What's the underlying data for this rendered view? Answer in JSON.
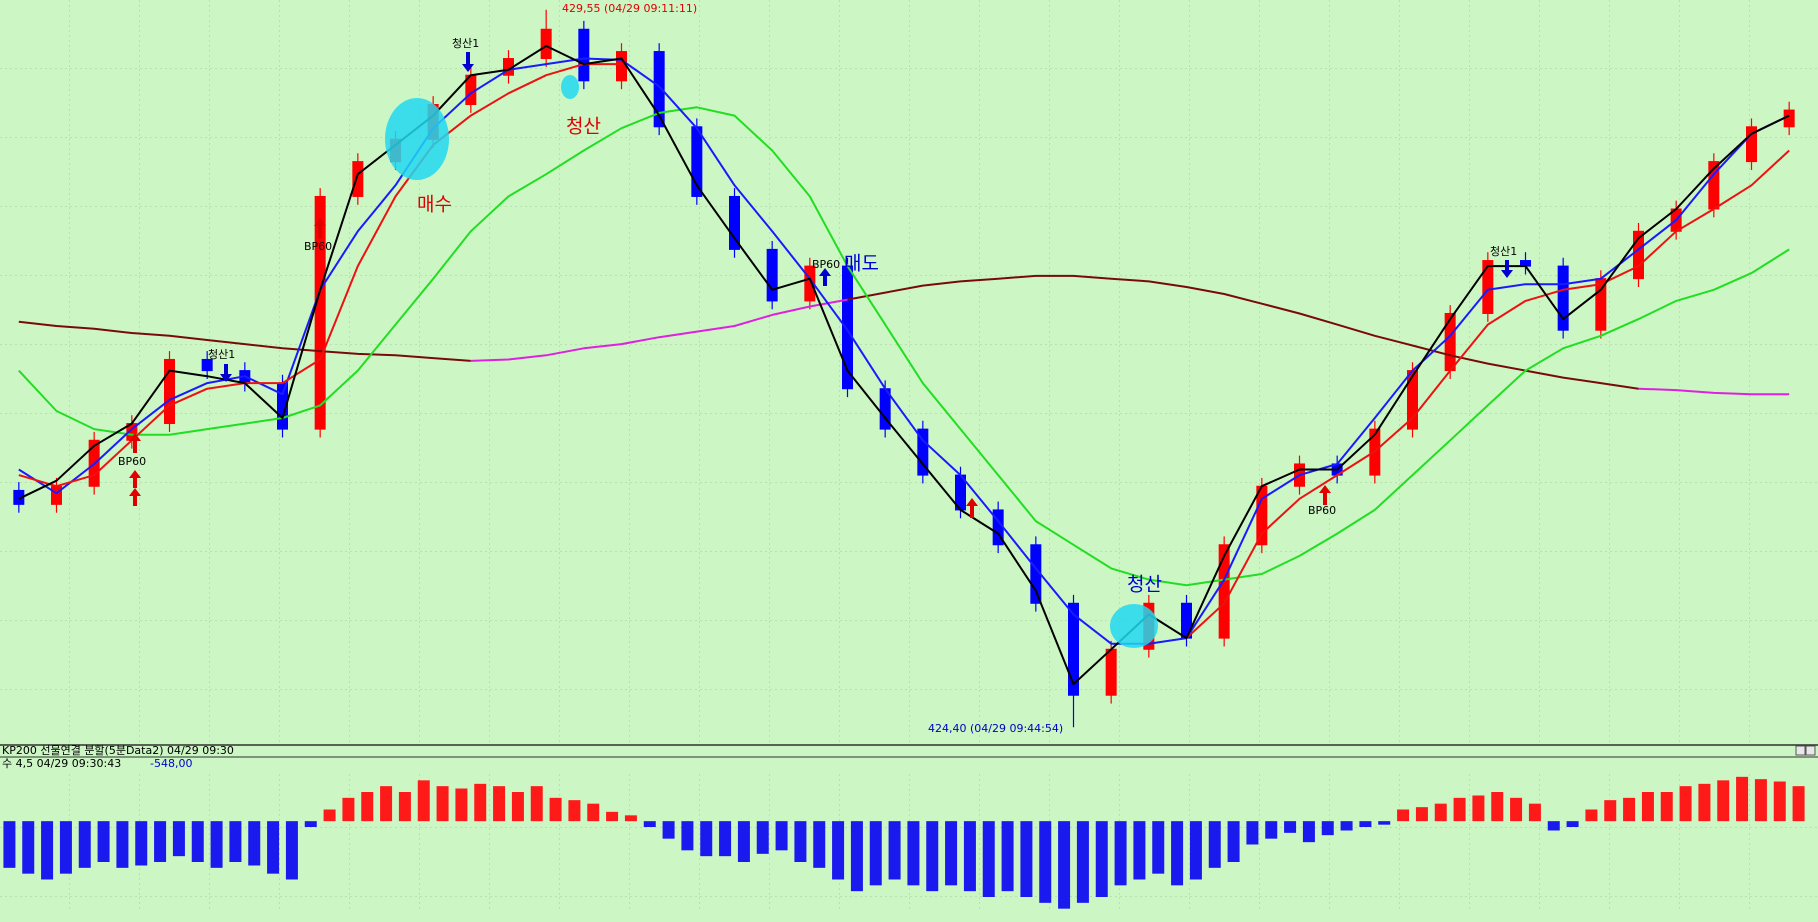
{
  "chart_data": [
    {
      "type": "candlestick",
      "ylim": [
        424.28,
        429.62
      ],
      "up_color": "#ff0000",
      "down_color": "#0000ff",
      "open": [
        426.1,
        426.0,
        426.13,
        426.46,
        426.58,
        427.04,
        426.96,
        426.87,
        426.54,
        428.21,
        428.46,
        428.62,
        428.87,
        429.08,
        429.2,
        429.41,
        429.04,
        429.25,
        428.71,
        428.21,
        427.83,
        427.46,
        427.71,
        426.83,
        426.54,
        426.21,
        425.96,
        425.71,
        425.29,
        424.63,
        424.96,
        425.29,
        425.04,
        425.71,
        426.13,
        426.29,
        426.21,
        426.54,
        426.96,
        427.37,
        427.75,
        427.71,
        427.25,
        427.62,
        427.96,
        428.12,
        428.46,
        428.71
      ],
      "high": [
        426.16,
        426.19,
        426.52,
        426.64,
        427.1,
        427.1,
        427.02,
        426.93,
        428.27,
        428.52,
        428.68,
        428.93,
        429.14,
        429.26,
        429.55,
        429.47,
        429.31,
        429.31,
        428.77,
        428.27,
        427.89,
        427.77,
        427.77,
        426.89,
        426.6,
        426.27,
        426.02,
        425.77,
        425.35,
        425.02,
        425.35,
        425.35,
        425.77,
        426.19,
        426.35,
        426.35,
        426.6,
        427.02,
        427.43,
        427.81,
        427.81,
        427.77,
        427.68,
        428.02,
        428.18,
        428.52,
        428.77,
        428.89
      ],
      "low": [
        425.94,
        425.94,
        426.07,
        426.4,
        426.52,
        426.9,
        426.81,
        426.48,
        426.48,
        428.15,
        428.4,
        428.56,
        428.81,
        429.02,
        429.14,
        428.98,
        428.98,
        428.65,
        428.15,
        427.77,
        427.4,
        427.4,
        426.77,
        426.48,
        426.15,
        425.9,
        425.65,
        425.23,
        424.4,
        424.57,
        424.9,
        424.98,
        424.98,
        425.65,
        426.07,
        426.15,
        426.15,
        426.48,
        426.9,
        427.31,
        427.65,
        427.19,
        427.19,
        427.56,
        427.9,
        428.06,
        428.4,
        428.65
      ],
      "close": [
        426.0,
        426.13,
        426.46,
        426.58,
        427.04,
        426.96,
        426.87,
        426.54,
        428.21,
        428.46,
        428.62,
        428.87,
        429.08,
        429.2,
        429.41,
        429.04,
        429.25,
        428.71,
        428.21,
        427.83,
        427.46,
        427.71,
        426.83,
        426.54,
        426.21,
        425.96,
        425.71,
        425.29,
        424.63,
        424.96,
        425.29,
        425.04,
        425.71,
        426.13,
        426.29,
        426.21,
        426.54,
        426.96,
        427.37,
        427.75,
        427.71,
        427.25,
        427.62,
        427.96,
        428.12,
        428.46,
        428.71,
        428.83
      ],
      "series": [
        {
          "color": "#7a0a0a",
          "values": [
            427.31,
            427.28,
            427.26,
            427.23,
            427.21,
            427.18,
            427.15,
            427.12,
            427.1,
            427.08,
            427.07,
            427.05,
            427.03,
            null,
            null,
            null,
            null,
            null,
            null,
            null,
            null,
            null,
            427.47,
            427.52,
            427.57,
            427.6,
            427.62,
            427.64,
            427.64,
            427.62,
            427.6,
            427.56,
            427.51,
            427.44,
            427.37,
            427.29,
            427.21,
            427.14,
            427.07,
            427.01,
            426.96,
            426.91,
            426.87,
            426.83,
            null,
            null,
            null,
            null
          ]
        },
        {
          "color": "#e020e0",
          "values": [
            null,
            null,
            null,
            null,
            null,
            null,
            null,
            null,
            null,
            null,
            null,
            null,
            427.03,
            427.04,
            427.07,
            427.12,
            427.15,
            427.2,
            427.24,
            427.28,
            427.36,
            427.42,
            427.47,
            null,
            null,
            null,
            null,
            null,
            null,
            null,
            null,
            null,
            null,
            null,
            null,
            null,
            null,
            null,
            null,
            null,
            null,
            null,
            null,
            426.83,
            426.82,
            426.8,
            426.79,
            426.79
          ]
        },
        {
          "color": "#22dd22",
          "values": [
            426.96,
            426.67,
            426.54,
            426.5,
            426.5,
            426.54,
            426.58,
            426.62,
            426.71,
            426.96,
            427.29,
            427.62,
            427.96,
            428.21,
            428.37,
            428.54,
            428.7,
            428.81,
            428.85,
            428.79,
            428.54,
            428.21,
            427.71,
            427.29,
            426.87,
            426.54,
            426.21,
            425.88,
            425.71,
            425.54,
            425.46,
            425.42,
            425.46,
            425.5,
            425.63,
            425.79,
            425.96,
            426.21,
            426.46,
            426.71,
            426.96,
            427.12,
            427.21,
            427.33,
            427.46,
            427.54,
            427.66,
            427.83
          ]
        },
        {
          "color": "#1a1aff",
          "values": [
            426.25,
            426.08,
            426.29,
            426.54,
            426.75,
            426.87,
            426.92,
            426.79,
            427.54,
            427.96,
            428.29,
            428.7,
            428.95,
            429.12,
            429.16,
            429.2,
            429.19,
            429.0,
            428.7,
            428.29,
            427.96,
            427.62,
            427.25,
            426.83,
            426.46,
            426.21,
            425.88,
            425.54,
            425.21,
            425.0,
            425.0,
            425.04,
            425.46,
            426.04,
            426.21,
            426.29,
            426.62,
            426.96,
            427.21,
            427.54,
            427.58,
            427.58,
            427.62,
            427.83,
            428.04,
            428.37,
            428.66,
            428.79
          ]
        },
        {
          "color": "#ee1111",
          "values": [
            426.21,
            426.13,
            426.21,
            426.46,
            426.71,
            426.83,
            426.87,
            426.87,
            427.04,
            427.71,
            428.21,
            428.58,
            428.79,
            428.95,
            429.08,
            429.16,
            429.16,
            null,
            null,
            null,
            null,
            null,
            null,
            null,
            null,
            null,
            null,
            null,
            null,
            null,
            null,
            425.04,
            425.29,
            425.79,
            426.04,
            426.21,
            426.38,
            426.62,
            426.96,
            427.29,
            427.46,
            427.54,
            427.58,
            427.71,
            427.96,
            428.12,
            428.29,
            428.54
          ]
        },
        {
          "color": "#000000",
          "values": [
            426.04,
            426.17,
            426.42,
            426.58,
            426.96,
            426.92,
            426.87,
            426.62,
            427.54,
            428.37,
            428.58,
            428.79,
            429.08,
            429.12,
            429.29,
            429.16,
            429.2,
            428.79,
            428.29,
            427.91,
            427.54,
            427.62,
            426.96,
            426.62,
            426.29,
            425.96,
            425.79,
            425.38,
            424.71,
            424.96,
            425.21,
            425.04,
            425.63,
            426.13,
            426.25,
            426.25,
            426.5,
            426.92,
            427.33,
            427.71,
            427.71,
            427.33,
            427.54,
            427.91,
            428.12,
            428.41,
            428.66,
            428.79
          ]
        }
      ],
      "annotations": [
        "429,55 (04/29 09:11:11)",
        "424,40 (04/29 09:44:54)",
        "매수",
        "청산",
        "매도",
        "청산",
        "BP60",
        "BP60",
        "BP60",
        "BP60",
        "청산1",
        "청산1",
        "청산1"
      ]
    },
    {
      "type": "bar",
      "title": "KP200 선물연결 분할(5분Data2) 04/29 09:30",
      "subtitle": "수 4,5  04/29 09:30:43",
      "current_value": "-548,00",
      "ylim": [
        -770,
        430
      ],
      "up_color": "#ff1a1a",
      "down_color": "#1a1aee",
      "values": [
        -400,
        -450,
        -500,
        -450,
        -400,
        -350,
        -400,
        -380,
        -350,
        -300,
        -350,
        -400,
        -350,
        -380,
        -450,
        -500,
        -50,
        100,
        200,
        250,
        300,
        250,
        350,
        300,
        280,
        320,
        300,
        250,
        300,
        200,
        180,
        150,
        80,
        50,
        -50,
        -150,
        -250,
        -300,
        -300,
        -350,
        -280,
        -250,
        -350,
        -400,
        -500,
        -600,
        -550,
        -500,
        -550,
        -600,
        -550,
        -600,
        -650,
        -600,
        -650,
        -700,
        -750,
        -700,
        -650,
        -550,
        -500,
        -450,
        -550,
        -500,
        -400,
        -350,
        -200,
        -150,
        -100,
        -180,
        -120,
        -80,
        -50,
        -30,
        100,
        120,
        150,
        200,
        220,
        250,
        200,
        150,
        -80,
        -50,
        100,
        180,
        200,
        250,
        250,
        300,
        320,
        350,
        380,
        360,
        340,
        300
      ]
    }
  ]
}
